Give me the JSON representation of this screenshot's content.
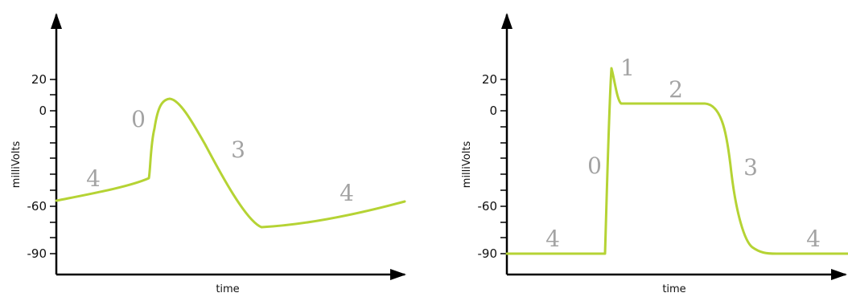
{
  "colors": {
    "curve": "#b5d334",
    "phase_label": "#a3a3a3",
    "axis": "#000000"
  },
  "chart_data": [
    {
      "type": "line",
      "xlabel": "time",
      "ylabel": "milliVolts",
      "y_ticks_labeled": [
        "20",
        "0",
        "-60",
        "-90"
      ],
      "phase_labels": [
        "4",
        "0",
        "3",
        "4"
      ],
      "series": [
        {
          "values": [
            [
              0,
              -57
            ],
            [
              30,
              -50
            ],
            [
              30.5,
              -45
            ],
            [
              33,
              5
            ],
            [
              35,
              8
            ],
            [
              45,
              -20
            ],
            [
              60,
              -74
            ],
            [
              100,
              -57
            ]
          ]
        }
      ]
    },
    {
      "type": "line",
      "xlabel": "time",
      "ylabel": "milliVolts",
      "y_ticks_labeled": [
        "20",
        "0",
        "-60",
        "-90"
      ],
      "phase_labels": [
        "4",
        "0",
        "1",
        "2",
        "3",
        "4"
      ],
      "series": [
        {
          "values": [
            [
              0,
              -90
            ],
            [
              30,
              -90
            ],
            [
              31,
              25
            ],
            [
              33,
              5
            ],
            [
              60,
              5
            ],
            [
              68,
              -50
            ],
            [
              75,
              -90
            ],
            [
              100,
              -90
            ]
          ]
        }
      ]
    }
  ]
}
